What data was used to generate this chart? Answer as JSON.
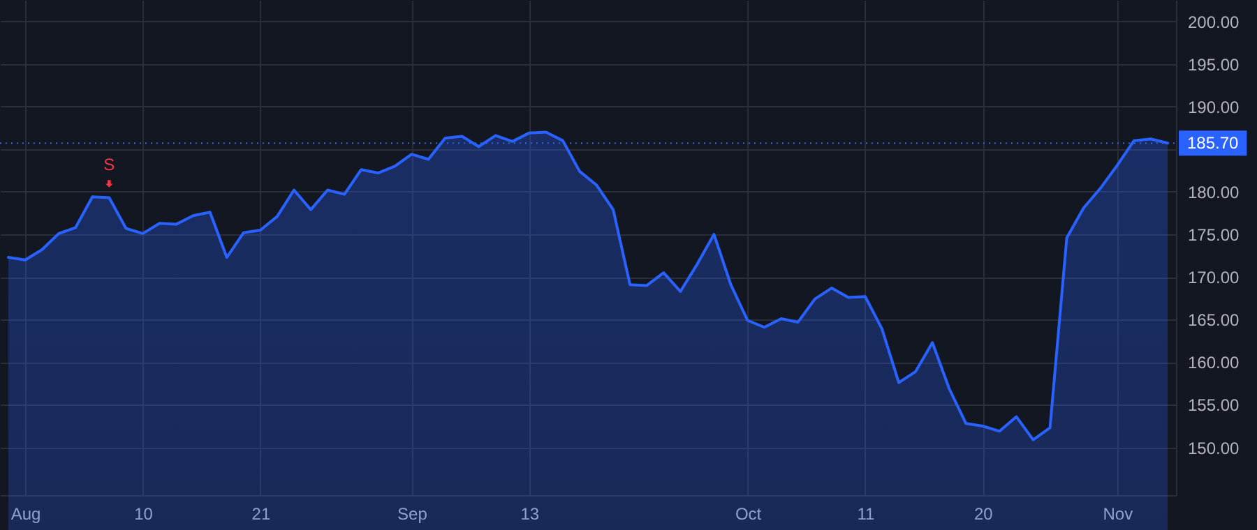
{
  "chart_data": {
    "type": "area",
    "categories": [
      null,
      "Aug",
      null,
      null,
      null,
      null,
      null,
      null,
      "10",
      null,
      null,
      null,
      null,
      null,
      null,
      "21",
      null,
      null,
      null,
      null,
      null,
      null,
      null,
      null,
      "Sep",
      null,
      null,
      null,
      null,
      null,
      null,
      "13",
      null,
      null,
      null,
      null,
      null,
      null,
      null,
      null,
      null,
      null,
      null,
      null,
      "Oct",
      null,
      null,
      null,
      null,
      null,
      null,
      "11",
      null,
      null,
      null,
      null,
      null,
      null,
      "20",
      null,
      null,
      null,
      null,
      null,
      null,
      null,
      "Nov",
      null,
      null,
      null
    ],
    "series": [
      {
        "color": "#2962ff",
        "values": [
          172.3,
          172.0,
          173.2,
          175.1,
          175.8,
          179.4,
          179.3,
          175.7,
          175.1,
          176.3,
          176.2,
          177.2,
          177.6,
          172.3,
          175.2,
          175.5,
          177.1,
          180.2,
          177.9,
          180.2,
          179.7,
          182.6,
          182.2,
          183.0,
          184.4,
          183.8,
          186.3,
          186.5,
          185.3,
          186.6,
          185.9,
          186.9,
          187.0,
          186.0,
          182.4,
          180.8,
          177.9,
          169.1,
          169.0,
          170.5,
          168.3,
          171.5,
          175.0,
          169.1,
          164.9,
          164.1,
          165.1,
          164.7,
          167.4,
          168.7,
          167.6,
          167.7,
          163.9,
          157.6,
          158.9,
          162.3,
          156.9,
          152.8,
          152.5,
          151.9,
          153.6,
          150.9,
          152.3,
          174.6,
          178.1,
          180.4,
          183.1,
          186.0,
          186.2,
          185.7
        ]
      }
    ],
    "ylim": [
      144.4,
      202.5
    ],
    "yticks": [
      {
        "value": 150,
        "label": "150.00"
      },
      {
        "value": 155,
        "label": "155.00"
      },
      {
        "value": 160,
        "label": "160.00"
      },
      {
        "value": 165,
        "label": "165.00"
      },
      {
        "value": 170,
        "label": "170.00"
      },
      {
        "value": 175,
        "label": "175.00"
      },
      {
        "value": 180,
        "label": "180.00"
      },
      {
        "value": 185,
        "label": null
      },
      {
        "value": 190,
        "label": "190.00"
      },
      {
        "value": 195,
        "label": "195.00"
      },
      {
        "value": 200,
        "label": "200.00"
      }
    ],
    "ref_lines": [
      {
        "axis": "y",
        "value": 185.7,
        "label": "185.70",
        "color": "#2962ff",
        "line_style": "dotted"
      }
    ],
    "annotations": [
      {
        "text": "S",
        "y": 179.3
      }
    ],
    "grid": true,
    "marker": "none",
    "line_style": "solid"
  }
}
